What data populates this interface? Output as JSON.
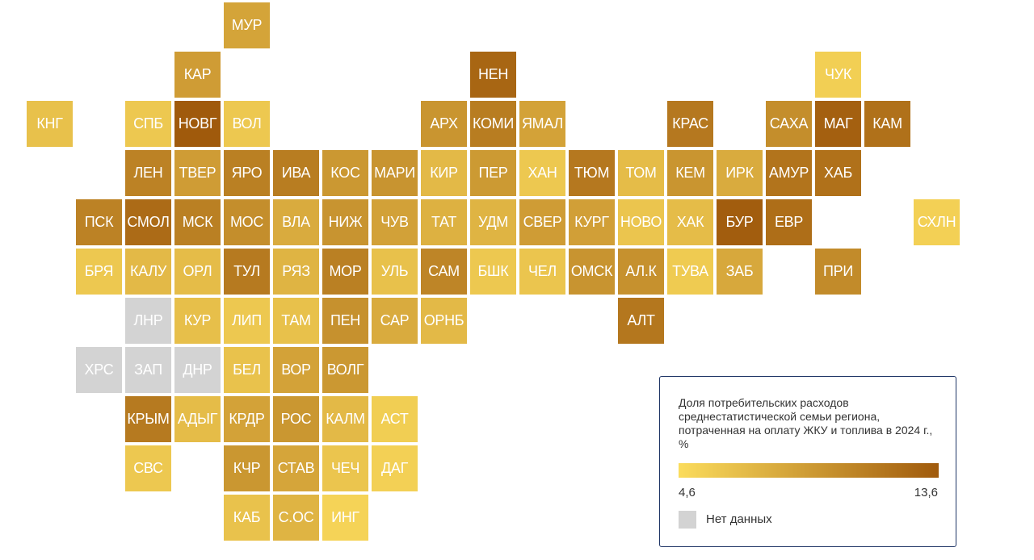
{
  "colors": {
    "scale_low": "#fbdc5c",
    "scale_high": "#a05a0c",
    "no_data": "#d3d3d3"
  },
  "legend": {
    "title": "Доля потребительских расходов среднестатистической семьи региона, потраченная на оплату ЖКУ и топлива в 2024 г., %",
    "min_label": "4,6",
    "max_label": "13,6",
    "min_value": 4.6,
    "max_value": 13.6,
    "no_data_label": "Нет данных"
  },
  "regions": [
    {
      "label": "МУР",
      "row": 0,
      "col": 4,
      "value": 8.5
    },
    {
      "label": "КАР",
      "row": 1,
      "col": 3,
      "value": 9.0
    },
    {
      "label": "НЕН",
      "row": 1,
      "col": 9,
      "value": 12.8
    },
    {
      "label": "ЧУК",
      "row": 1,
      "col": 16,
      "value": 5.5
    },
    {
      "label": "КНГ",
      "row": 2,
      "col": 0,
      "value": 6.5
    },
    {
      "label": "СПБ",
      "row": 2,
      "col": 2,
      "value": 6.0
    },
    {
      "label": "НОВГ",
      "row": 2,
      "col": 3,
      "value": 13.6
    },
    {
      "label": "ВОЛ",
      "row": 2,
      "col": 4,
      "value": 6.0
    },
    {
      "label": "АРХ",
      "row": 2,
      "col": 8,
      "value": 9.5
    },
    {
      "label": "КОМИ",
      "row": 2,
      "col": 9,
      "value": 11.2
    },
    {
      "label": "ЯМАЛ",
      "row": 2,
      "col": 10,
      "value": 8.6
    },
    {
      "label": "КРАС",
      "row": 2,
      "col": 13,
      "value": 11.5
    },
    {
      "label": "САХА",
      "row": 2,
      "col": 15,
      "value": 10.0
    },
    {
      "label": "МАГ",
      "row": 2,
      "col": 16,
      "value": 13.2
    },
    {
      "label": "КАМ",
      "row": 2,
      "col": 17,
      "value": 12.0
    },
    {
      "label": "ЛЕН",
      "row": 3,
      "col": 2,
      "value": 10.8
    },
    {
      "label": "ТВЕР",
      "row": 3,
      "col": 3,
      "value": 9.0
    },
    {
      "label": "ЯРО",
      "row": 3,
      "col": 4,
      "value": 11.0
    },
    {
      "label": "ИВА",
      "row": 3,
      "col": 5,
      "value": 11.2
    },
    {
      "label": "КОС",
      "row": 3,
      "col": 6,
      "value": 9.3
    },
    {
      "label": "МАРИ",
      "row": 3,
      "col": 7,
      "value": 9.6
    },
    {
      "label": "КИР",
      "row": 3,
      "col": 8,
      "value": 7.0
    },
    {
      "label": "ПЕР",
      "row": 3,
      "col": 9,
      "value": 9.2
    },
    {
      "label": "ХАН",
      "row": 3,
      "col": 10,
      "value": 6.0
    },
    {
      "label": "ТЮМ",
      "row": 3,
      "col": 11,
      "value": 11.5
    },
    {
      "label": "ТОМ",
      "row": 3,
      "col": 12,
      "value": 6.8
    },
    {
      "label": "КЕМ",
      "row": 3,
      "col": 13,
      "value": 9.5
    },
    {
      "label": "ИРК",
      "row": 3,
      "col": 14,
      "value": 8.0
    },
    {
      "label": "АМУР",
      "row": 3,
      "col": 15,
      "value": 11.8
    },
    {
      "label": "ХАБ",
      "row": 3,
      "col": 16,
      "value": 12.0
    },
    {
      "label": "ПСК",
      "row": 4,
      "col": 1,
      "value": 10.8
    },
    {
      "label": "СМОЛ",
      "row": 4,
      "col": 2,
      "value": 12.4
    },
    {
      "label": "МСК",
      "row": 4,
      "col": 3,
      "value": 11.0
    },
    {
      "label": "МОС",
      "row": 4,
      "col": 4,
      "value": 10.0
    },
    {
      "label": "ВЛА",
      "row": 4,
      "col": 5,
      "value": 8.0
    },
    {
      "label": "НИЖ",
      "row": 4,
      "col": 6,
      "value": 9.6
    },
    {
      "label": "ЧУВ",
      "row": 4,
      "col": 7,
      "value": 8.7
    },
    {
      "label": "ТАТ",
      "row": 4,
      "col": 8,
      "value": 7.6
    },
    {
      "label": "УДМ",
      "row": 4,
      "col": 9,
      "value": 7.4
    },
    {
      "label": "СВЕР",
      "row": 4,
      "col": 10,
      "value": 9.0
    },
    {
      "label": "КУРГ",
      "row": 4,
      "col": 11,
      "value": 8.8
    },
    {
      "label": "НОВО",
      "row": 4,
      "col": 12,
      "value": 6.2
    },
    {
      "label": "ХАК",
      "row": 4,
      "col": 13,
      "value": 6.8
    },
    {
      "label": "БУР",
      "row": 4,
      "col": 14,
      "value": 13.4
    },
    {
      "label": "ЕВР",
      "row": 4,
      "col": 15,
      "value": 12.2
    },
    {
      "label": "СХЛН",
      "row": 4,
      "col": 18,
      "value": 5.4
    },
    {
      "label": "БРЯ",
      "row": 5,
      "col": 1,
      "value": 6.0
    },
    {
      "label": "КАЛУ",
      "row": 5,
      "col": 2,
      "value": 7.0
    },
    {
      "label": "ОРЛ",
      "row": 5,
      "col": 3,
      "value": 6.8
    },
    {
      "label": "ТУЛ",
      "row": 5,
      "col": 4,
      "value": 11.4
    },
    {
      "label": "РЯЗ",
      "row": 5,
      "col": 5,
      "value": 7.4
    },
    {
      "label": "МОР",
      "row": 5,
      "col": 6,
      "value": 11.0
    },
    {
      "label": "УЛЬ",
      "row": 5,
      "col": 7,
      "value": 6.5
    },
    {
      "label": "САМ",
      "row": 5,
      "col": 8,
      "value": 10.6
    },
    {
      "label": "БШК",
      "row": 5,
      "col": 9,
      "value": 6.0
    },
    {
      "label": "ЧЕЛ",
      "row": 5,
      "col": 10,
      "value": 6.2
    },
    {
      "label": "ОМСК",
      "row": 5,
      "col": 11,
      "value": 9.6
    },
    {
      "label": "АЛ.К",
      "row": 5,
      "col": 12,
      "value": 9.8
    },
    {
      "label": "ТУВА",
      "row": 5,
      "col": 13,
      "value": 5.8
    },
    {
      "label": "ЗАБ",
      "row": 5,
      "col": 14,
      "value": 8.2
    },
    {
      "label": "ПРИ",
      "row": 5,
      "col": 16,
      "value": 10.2
    },
    {
      "label": "ЛНР",
      "row": 6,
      "col": 2,
      "value": null
    },
    {
      "label": "КУР",
      "row": 6,
      "col": 3,
      "value": 6.6
    },
    {
      "label": "ЛИП",
      "row": 6,
      "col": 4,
      "value": 6.0
    },
    {
      "label": "ТАМ",
      "row": 6,
      "col": 5,
      "value": 6.5
    },
    {
      "label": "ПЕН",
      "row": 6,
      "col": 6,
      "value": 9.8
    },
    {
      "label": "САР",
      "row": 6,
      "col": 7,
      "value": 8.0
    },
    {
      "label": "ОРНБ",
      "row": 6,
      "col": 8,
      "value": 7.0
    },
    {
      "label": "АЛТ",
      "row": 6,
      "col": 12,
      "value": 11.6
    },
    {
      "label": "ХРС",
      "row": 7,
      "col": 1,
      "value": null
    },
    {
      "label": "ЗАП",
      "row": 7,
      "col": 2,
      "value": null
    },
    {
      "label": "ДНР",
      "row": 7,
      "col": 3,
      "value": null
    },
    {
      "label": "БЕЛ",
      "row": 7,
      "col": 4,
      "value": 6.4
    },
    {
      "label": "ВОР",
      "row": 7,
      "col": 5,
      "value": 8.6
    },
    {
      "label": "ВОЛГ",
      "row": 7,
      "col": 6,
      "value": 9.3
    },
    {
      "label": "КРЫМ",
      "row": 8,
      "col": 2,
      "value": 11.4
    },
    {
      "label": "АДЫГ",
      "row": 8,
      "col": 3,
      "value": 6.8
    },
    {
      "label": "КРДР",
      "row": 8,
      "col": 4,
      "value": 8.6
    },
    {
      "label": "РОС",
      "row": 8,
      "col": 5,
      "value": 9.4
    },
    {
      "label": "КАЛМ",
      "row": 8,
      "col": 6,
      "value": 7.0
    },
    {
      "label": "АСТ",
      "row": 8,
      "col": 7,
      "value": 5.6
    },
    {
      "label": "СВС",
      "row": 9,
      "col": 2,
      "value": 6.0
    },
    {
      "label": "КЧР",
      "row": 9,
      "col": 4,
      "value": 9.4
    },
    {
      "label": "СТАВ",
      "row": 9,
      "col": 5,
      "value": 8.4
    },
    {
      "label": "ЧЕЧ",
      "row": 9,
      "col": 6,
      "value": 6.2
    },
    {
      "label": "ДАГ",
      "row": 9,
      "col": 7,
      "value": 5.4
    },
    {
      "label": "КАБ",
      "row": 10,
      "col": 4,
      "value": 6.4
    },
    {
      "label": "С.ОС",
      "row": 10,
      "col": 5,
      "value": 7.4
    },
    {
      "label": "ИНГ",
      "row": 10,
      "col": 6,
      "value": 5.2
    }
  ]
}
